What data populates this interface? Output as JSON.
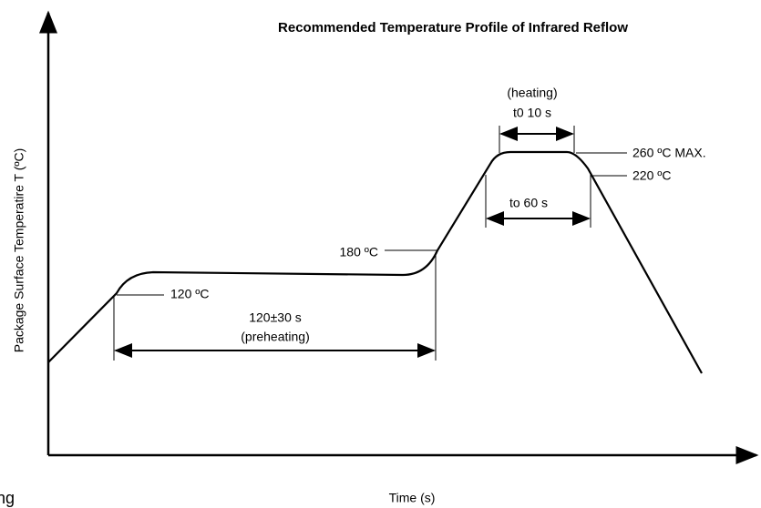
{
  "title": "Recommended Temperature Profile of Infrared Reflow",
  "axes": {
    "y_label": "Package Surface Temperatire T (ºC)",
    "x_label": "Time (s)"
  },
  "annotations": {
    "heating": "(heating)",
    "heating_time": "t0 10 s",
    "peak": "260 ºC MAX.",
    "t220": "220 ºC",
    "above220": "to 60 s",
    "t180": "180 ºC",
    "t120": "120 ºC",
    "preheat_time": "120±30 s",
    "preheating": "(preheating)"
  },
  "fragment": "ng"
}
